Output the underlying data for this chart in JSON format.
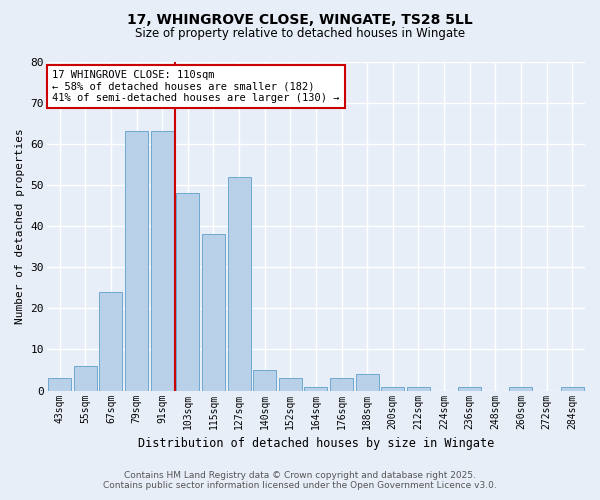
{
  "title": "17, WHINGROVE CLOSE, WINGATE, TS28 5LL",
  "subtitle": "Size of property relative to detached houses in Wingate",
  "xlabel": "Distribution of detached houses by size in Wingate",
  "ylabel": "Number of detached properties",
  "bins": [
    "43sqm",
    "55sqm",
    "67sqm",
    "79sqm",
    "91sqm",
    "103sqm",
    "115sqm",
    "127sqm",
    "140sqm",
    "152sqm",
    "164sqm",
    "176sqm",
    "188sqm",
    "200sqm",
    "212sqm",
    "224sqm",
    "236sqm",
    "248sqm",
    "260sqm",
    "272sqm",
    "284sqm"
  ],
  "counts": [
    3,
    6,
    24,
    63,
    63,
    48,
    38,
    52,
    5,
    3,
    1,
    3,
    4,
    1,
    1,
    0,
    1,
    0,
    1,
    0,
    1
  ],
  "bar_color": "#b8d0e8",
  "bar_edge_color": "#6fa8d0",
  "property_line_x": 4.5,
  "property_line_color": "#cc0000",
  "annotation_text": "17 WHINGROVE CLOSE: 110sqm\n← 58% of detached houses are smaller (182)\n41% of semi-detached houses are larger (130) →",
  "annotation_box_color": "#cc0000",
  "ylim": [
    0,
    80
  ],
  "yticks": [
    0,
    10,
    20,
    30,
    40,
    50,
    60,
    70,
    80
  ],
  "footer_line1": "Contains HM Land Registry data © Crown copyright and database right 2025.",
  "footer_line2": "Contains public sector information licensed under the Open Government Licence v3.0.",
  "bg_color": "#e8eef8",
  "plot_bg_color": "#e8eef8",
  "grid_color": "#ffffff"
}
